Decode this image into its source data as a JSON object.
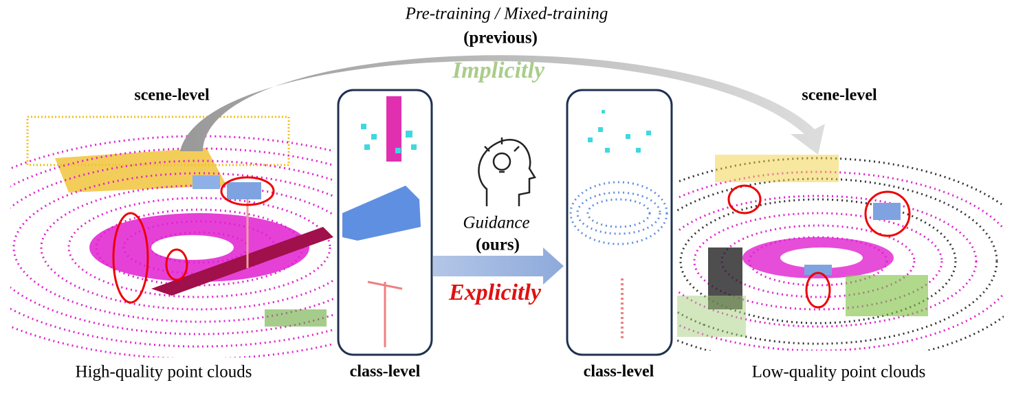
{
  "top": {
    "title": "Pre-training / Mixed-training",
    "subtitle": "(previous)",
    "implicit": "Implicitly"
  },
  "left": {
    "scene_label": "scene-level",
    "caption": "High-quality point clouds"
  },
  "right": {
    "scene_label": "scene-level",
    "caption": "Low-quality point clouds"
  },
  "left_class": {
    "label": "class-level"
  },
  "right_class": {
    "label": "class-level"
  },
  "middle": {
    "guidance": "Guidance",
    "ours": "(ours)",
    "explicit": "Explicitly"
  }
}
